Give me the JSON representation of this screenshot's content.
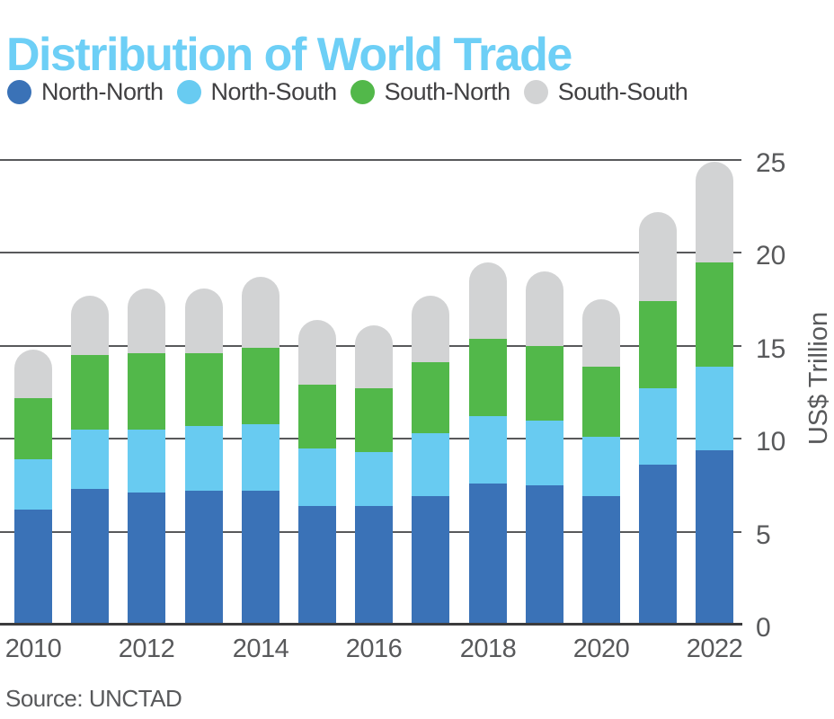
{
  "title": "Distribution of World Trade",
  "source": "Source: UNCTAD",
  "colors": {
    "title_accent": "#6DCFF6",
    "axis_text": "#58595B",
    "gridline": "#58595B",
    "axis_line": "#3B3B3D",
    "legend_text": "#414042"
  },
  "chart_data": {
    "type": "bar",
    "stacked": true,
    "title": "Distribution of World Trade",
    "ylabel": "US$ Trillion",
    "ylim": [
      0,
      25
    ],
    "yticks": [
      0,
      5,
      10,
      15,
      20,
      25
    ],
    "grid": true,
    "legend_position": "top",
    "rounded_bar_tops": true,
    "categories": [
      "2010",
      "2011",
      "2012",
      "2013",
      "2014",
      "2015",
      "2016",
      "2017",
      "2018",
      "2019",
      "2020",
      "2021",
      "2022"
    ],
    "xtick_labels_shown": [
      "2010",
      "2012",
      "2014",
      "2016",
      "2018",
      "2020",
      "2022"
    ],
    "series": [
      {
        "name": "North-North",
        "color": "#3A72B7",
        "values": [
          6.2,
          7.3,
          7.1,
          7.2,
          7.2,
          6.4,
          6.4,
          6.9,
          7.6,
          7.5,
          6.9,
          8.6,
          9.4
        ]
      },
      {
        "name": "North-South",
        "color": "#68CBF1",
        "values": [
          2.7,
          3.2,
          3.4,
          3.5,
          3.6,
          3.1,
          2.9,
          3.4,
          3.6,
          3.5,
          3.2,
          4.1,
          4.5
        ]
      },
      {
        "name": "South-North",
        "color": "#52B84A",
        "values": [
          3.3,
          4.0,
          4.1,
          3.9,
          4.1,
          3.4,
          3.4,
          3.8,
          4.2,
          4.0,
          3.8,
          4.7,
          5.6
        ]
      },
      {
        "name": "South-South",
        "color": "#D2D3D4",
        "values": [
          2.6,
          3.2,
          3.5,
          3.5,
          3.8,
          3.5,
          3.4,
          3.6,
          4.1,
          4.0,
          3.6,
          4.8,
          5.4
        ]
      }
    ],
    "totals": [
      14.8,
      17.7,
      18.1,
      18.1,
      18.7,
      16.4,
      16.1,
      17.7,
      19.5,
      19.0,
      17.5,
      22.2,
      24.9
    ]
  }
}
